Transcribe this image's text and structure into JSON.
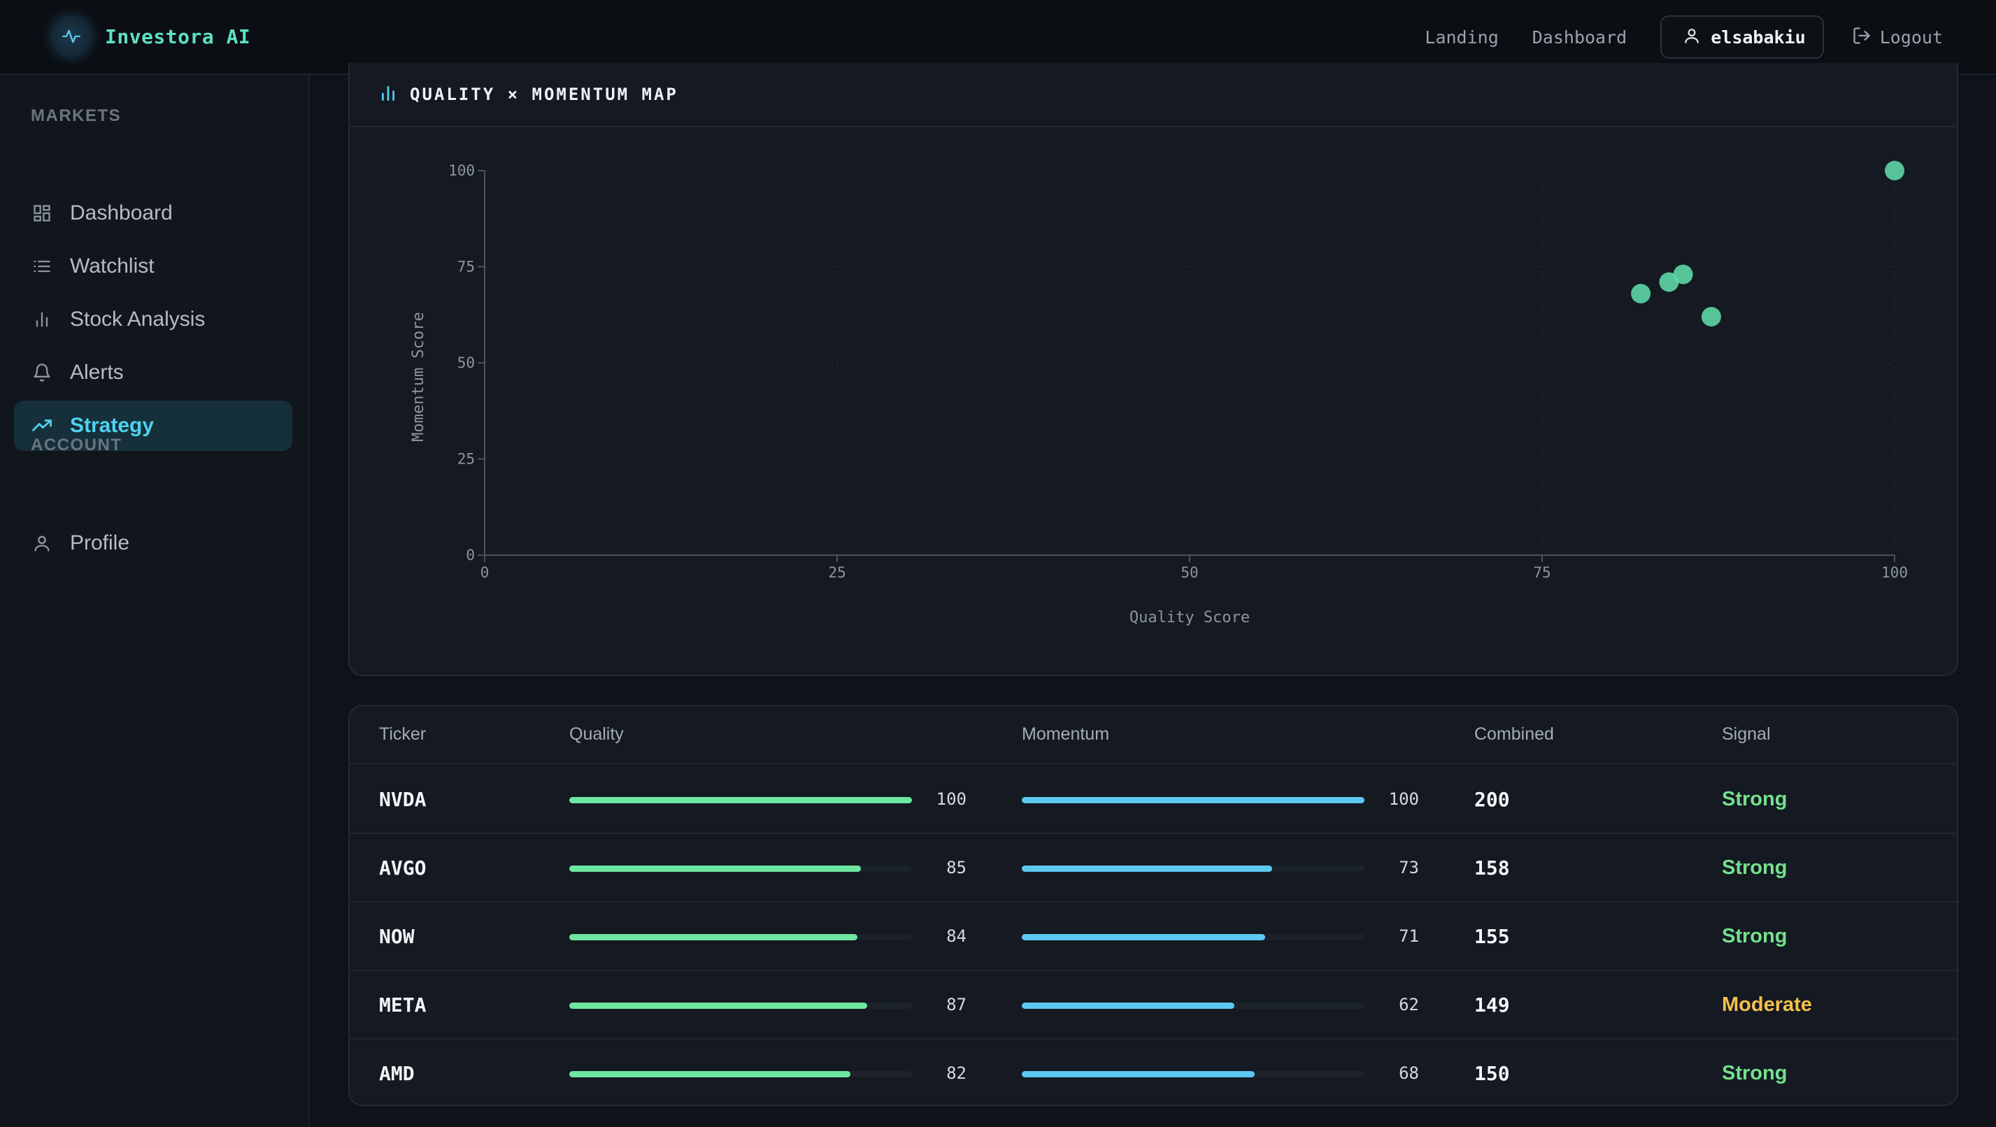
{
  "brand": {
    "name": "Investora AI"
  },
  "nav": {
    "links": [
      "Landing",
      "Dashboard"
    ],
    "username": "elsabakiu",
    "logout": "Logout"
  },
  "sidebar": {
    "markets_label": "MARKETS",
    "account_label": "ACCOUNT",
    "items": [
      {
        "label": "Dashboard",
        "icon": "dashboard-grid-icon"
      },
      {
        "label": "Watchlist",
        "icon": "list-icon"
      },
      {
        "label": "Stock Analysis",
        "icon": "bar-chart-icon"
      },
      {
        "label": "Alerts",
        "icon": "bell-icon"
      },
      {
        "label": "Strategy",
        "icon": "trending-up-icon",
        "active": true
      }
    ],
    "account_items": [
      {
        "label": "Profile",
        "icon": "user-icon"
      }
    ]
  },
  "chart": {
    "title": "QUALITY × MOMENTUM MAP"
  },
  "chart_data": {
    "type": "scatter",
    "title": "QUALITY × MOMENTUM MAP",
    "xlabel": "Quality Score",
    "ylabel": "Momentum Score",
    "xlim": [
      0,
      100
    ],
    "ylim": [
      0,
      100
    ],
    "xticks": [
      0,
      25,
      50,
      75,
      100
    ],
    "yticks": [
      0,
      25,
      50,
      75,
      100
    ],
    "grid": true,
    "points": [
      {
        "x": 100,
        "y": 100
      },
      {
        "x": 85,
        "y": 73
      },
      {
        "x": 84,
        "y": 71
      },
      {
        "x": 87,
        "y": 62
      },
      {
        "x": 82,
        "y": 68
      }
    ]
  },
  "table": {
    "headers": [
      "Ticker",
      "Quality",
      "Momentum",
      "Combined",
      "Signal"
    ],
    "rows": [
      {
        "ticker": "NVDA",
        "quality": 100,
        "momentum": 100,
        "combined": "200",
        "signal": "Strong"
      },
      {
        "ticker": "AVGO",
        "quality": 85,
        "momentum": 73,
        "combined": "158",
        "signal": "Strong"
      },
      {
        "ticker": "NOW",
        "quality": 84,
        "momentum": 71,
        "combined": "155",
        "signal": "Strong"
      },
      {
        "ticker": "META",
        "quality": 87,
        "momentum": 62,
        "combined": "149",
        "signal": "Moderate"
      },
      {
        "ticker": "AMD",
        "quality": 82,
        "momentum": 68,
        "combined": "150",
        "signal": "Strong"
      }
    ]
  },
  "colors": {
    "accent": "#4fd1f0",
    "quality_bar": "#6ee7a0",
    "momentum_bar": "#5cc8f0",
    "point": "#5dd6a6",
    "strong": "#74e08c",
    "moderate": "#f5c04a"
  }
}
